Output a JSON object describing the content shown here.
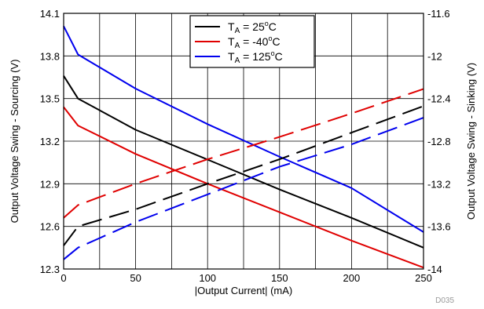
{
  "chart_data": {
    "type": "line",
    "xlabel": "|Output Current| (mA)",
    "ylabel_left": "Output Voltage Swing - Sourcing (V)",
    "ylabel_right": "Output Voltage Swing - Sinking (V)",
    "figure_code": "D035",
    "x_range": [
      0,
      250
    ],
    "x_ticks": [
      0,
      50,
      100,
      150,
      200,
      250
    ],
    "x_tick_labels": [
      "0",
      "50",
      "100",
      "150",
      "200",
      "250"
    ],
    "x_gridlines": [
      0,
      25,
      50,
      75,
      100,
      125,
      150,
      175,
      200,
      225,
      250
    ],
    "y_left_range": [
      12.3,
      14.1
    ],
    "y_left_ticks": [
      12.3,
      12.6,
      12.9,
      13.2,
      13.5,
      13.8,
      14.1
    ],
    "y_left_tick_labels": [
      "12.3",
      "12.6",
      "12.9",
      "13.2",
      "13.5",
      "13.8",
      "14.1"
    ],
    "y_right_range": [
      -14,
      -11.6
    ],
    "y_right_ticks": [
      -14,
      -13.6,
      -13.2,
      -12.8,
      -12.4,
      -12,
      -11.6
    ],
    "y_right_tick_labels": [
      "-14",
      "-13.6",
      "-13.2",
      "-12.8",
      "-12.4",
      "-12",
      "-11.6"
    ],
    "grid": true,
    "legend_position": "top-center",
    "series": [
      {
        "name": "T_A = 25°C",
        "label_prefix": "T",
        "label_sub": "A",
        "label_mid": " = 25",
        "label_sup": "o",
        "label_suffix": "C",
        "color": "#000000",
        "axis": "left",
        "style": "solid",
        "x": [
          0,
          10,
          50,
          100,
          150,
          200,
          250
        ],
        "y": [
          13.66,
          13.5,
          13.28,
          13.07,
          12.86,
          12.66,
          12.45
        ]
      },
      {
        "name": "T_A = -40°C",
        "label_prefix": "T",
        "label_sub": "A",
        "label_mid": " = -40",
        "label_sup": "o",
        "label_suffix": "C",
        "color": "#e00000",
        "axis": "left",
        "style": "solid",
        "x": [
          0,
          10,
          50,
          100,
          150,
          200,
          250
        ],
        "y": [
          13.44,
          13.31,
          13.11,
          12.9,
          12.7,
          12.5,
          12.31
        ]
      },
      {
        "name": "T_A = 125°C",
        "label_prefix": "T",
        "label_sub": "A",
        "label_mid": " = 125",
        "label_sup": "o",
        "label_suffix": "C",
        "color": "#0000ee",
        "axis": "left",
        "style": "solid",
        "x": [
          0,
          10,
          50,
          100,
          150,
          200,
          250
        ],
        "y": [
          14.01,
          13.81,
          13.57,
          13.32,
          13.09,
          12.87,
          12.56
        ]
      },
      {
        "name": "T_A = 25°C sinking",
        "color": "#000000",
        "axis": "right",
        "style": "dashed",
        "x": [
          0,
          10,
          50,
          100,
          150,
          200,
          250
        ],
        "y": [
          -13.78,
          -13.6,
          -13.44,
          -13.2,
          -12.97,
          -12.72,
          -12.47
        ]
      },
      {
        "name": "T_A = -40°C sinking",
        "color": "#e00000",
        "axis": "right",
        "style": "dashed",
        "x": [
          0,
          10,
          50,
          100,
          150,
          200,
          250
        ],
        "y": [
          -13.52,
          -13.4,
          -13.2,
          -12.97,
          -12.76,
          -12.54,
          -12.31
        ]
      },
      {
        "name": "T_A = 125°C sinking",
        "color": "#0000ee",
        "axis": "right",
        "style": "dashed",
        "x": [
          0,
          10,
          50,
          100,
          150,
          200,
          250
        ],
        "y": [
          -13.91,
          -13.8,
          -13.56,
          -13.3,
          -13.04,
          -12.83,
          -12.58
        ]
      }
    ]
  }
}
